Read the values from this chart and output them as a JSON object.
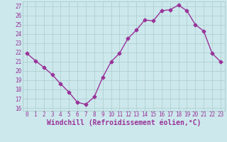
{
  "x": [
    0,
    1,
    2,
    3,
    4,
    5,
    6,
    7,
    8,
    9,
    10,
    11,
    12,
    13,
    14,
    15,
    16,
    17,
    18,
    19,
    20,
    21,
    22,
    23
  ],
  "y": [
    21.9,
    21.1,
    20.4,
    19.6,
    18.6,
    17.7,
    16.6,
    16.4,
    17.2,
    19.3,
    21.0,
    21.9,
    23.5,
    24.4,
    25.5,
    25.4,
    26.5,
    26.6,
    27.1,
    26.5,
    25.0,
    24.3,
    21.9,
    21.0
  ],
  "line_color": "#993399",
  "marker": "D",
  "marker_size": 2.5,
  "bg_color": "#cce8ec",
  "grid_color": "#aacccc",
  "xlabel": "Windchill (Refroidissement éolien,°C)",
  "ylim": [
    15.7,
    27.5
  ],
  "xlim": [
    -0.5,
    23.5
  ],
  "yticks": [
    16,
    17,
    18,
    19,
    20,
    21,
    22,
    23,
    24,
    25,
    26,
    27
  ],
  "xticks": [
    0,
    1,
    2,
    3,
    4,
    5,
    6,
    7,
    8,
    9,
    10,
    11,
    12,
    13,
    14,
    15,
    16,
    17,
    18,
    19,
    20,
    21,
    22,
    23
  ],
  "tick_fontsize": 5.5,
  "xlabel_fontsize": 7.0,
  "axis_text_color": "#993399"
}
